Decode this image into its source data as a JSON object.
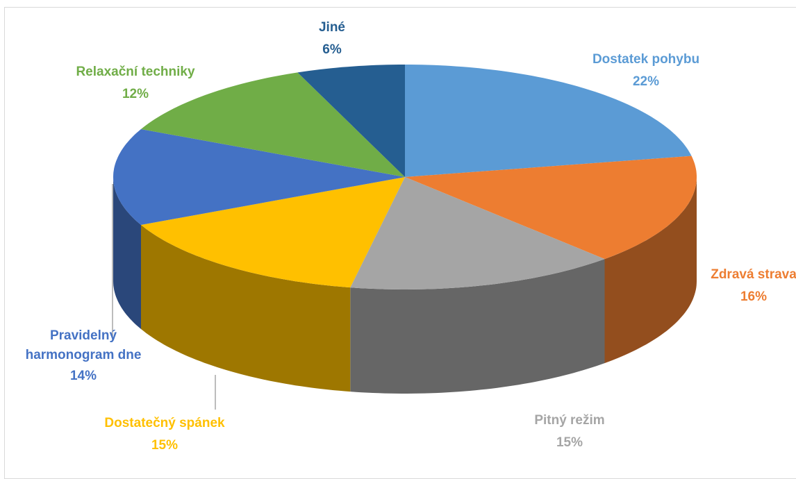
{
  "chart_data": {
    "type": "pie3d",
    "categories": [
      "Dostatek pohybu",
      "Zdravá strava",
      "Pitný režim",
      "Dostatečný spánek",
      "Pravidelný harmonogram dne",
      "Relaxační techniky",
      "Jiné"
    ],
    "values": [
      22,
      16,
      15,
      15,
      14,
      12,
      6
    ],
    "value_labels": [
      "22%",
      "16%",
      "15%",
      "15%",
      "14%",
      "12%",
      "6%"
    ],
    "colors": [
      "#5b9bd5",
      "#ed7d31",
      "#a5a5a5",
      "#ffc000",
      "#4472c4",
      "#70ad47",
      "#255e91"
    ]
  }
}
